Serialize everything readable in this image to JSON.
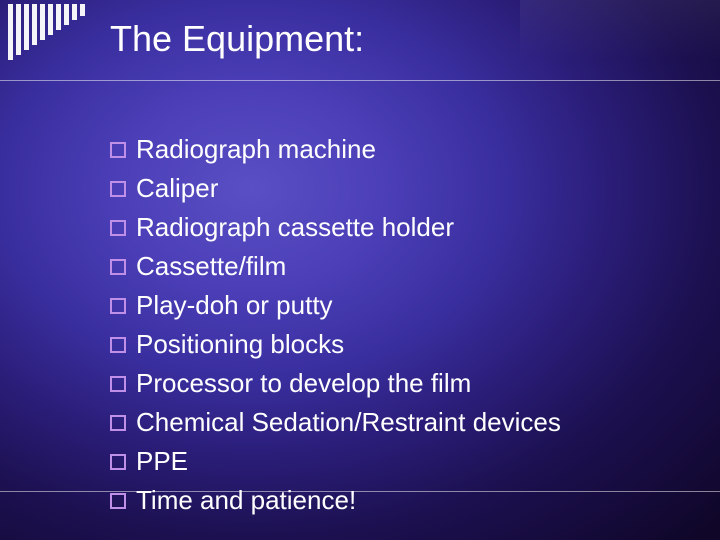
{
  "slide": {
    "title": "The Equipment:",
    "title_fontsize": 36,
    "title_color": "#ffffff",
    "item_fontsize": 26,
    "item_color": "#ffffff",
    "item_line_height": 39,
    "bullet_color": "#c08fe8",
    "bullet_size": 16,
    "background_gradient_stops": [
      "#5a4fc4",
      "#4c3fb8",
      "#3a2fa0",
      "#2a1d78",
      "#1c1050",
      "#0f0628"
    ],
    "rule_color": "#ffffff80",
    "items": [
      "Radiograph machine",
      "Caliper",
      "Radiograph cassette holder",
      "Cassette/film",
      "Play-doh or putty",
      "Positioning blocks",
      "Processor to develop the film",
      "Chemical Sedation/Restraint devices",
      "PPE",
      "Time and patience!"
    ]
  }
}
